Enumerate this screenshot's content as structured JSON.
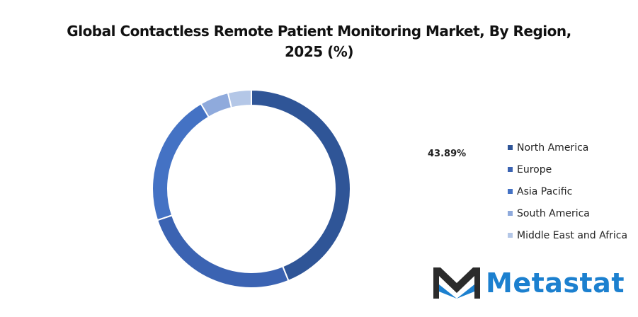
{
  "chart_data": {
    "type": "pie",
    "variant": "donut",
    "title": "Global Contactless Remote Patient Monitoring Market, By Region, 2025 (%)",
    "title_lines": [
      "Global Contactless Remote Patient Monitoring Market, By Region,",
      "2025 (%)"
    ],
    "categories": [
      "North America",
      "Europe",
      "Asia Pacific",
      "South America",
      "Middle East and Africa"
    ],
    "values": [
      43.89,
      26.0,
      21.6,
      4.7,
      3.81
    ],
    "colors": [
      "#2f5597",
      "#3b63b2",
      "#4472c4",
      "#8faadc",
      "#b4c7e7"
    ],
    "data_labels": [
      "43.89%"
    ],
    "legend_position": "right"
  },
  "branding": {
    "logo_text": "Metastat"
  }
}
